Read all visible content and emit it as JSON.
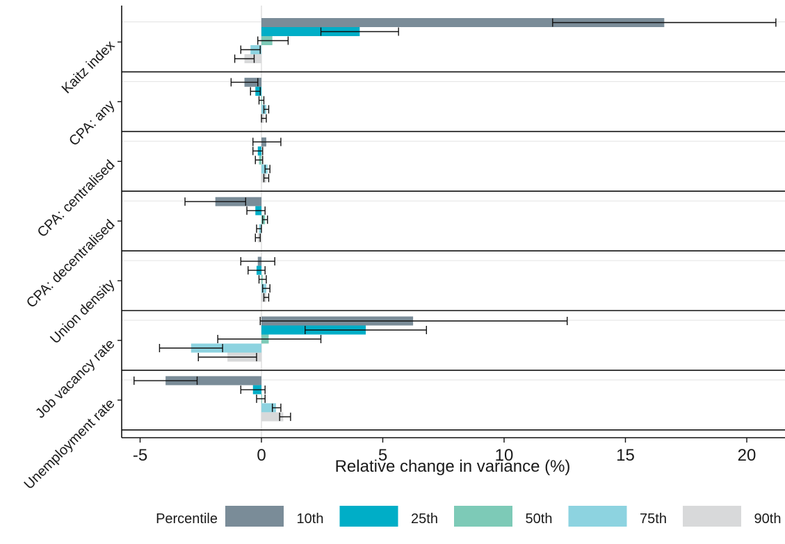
{
  "chart_data": {
    "type": "bar",
    "orientation": "horizontal",
    "xlabel": "Relative change in variance (%)",
    "xlim": [
      -6,
      21.5
    ],
    "xticks": [
      -5,
      0,
      5,
      10,
      15,
      20
    ],
    "xtick_labels": [
      "-5",
      "0",
      "5",
      "10",
      "15",
      "20"
    ],
    "grid": "horizontal minor lines only",
    "legend": {
      "position": "bottom",
      "title": "Percentile",
      "entries": [
        "10th",
        "25th",
        "50th",
        "75th",
        "90th"
      ]
    },
    "colors": [
      "#7a8c98",
      "#00aec7",
      "#7dcab7",
      "#8dd3e0",
      "#d8d9da"
    ],
    "categories": [
      "Kaitz index",
      "CPA: any",
      "CPA: centralised",
      "CPA: decentralised",
      "Union density",
      "Job vacancy rate",
      "Unemployment rate"
    ],
    "series": [
      {
        "name": "10th",
        "values": [
          16.6,
          -0.7,
          0.2,
          -1.9,
          -0.15,
          6.25,
          -3.95
        ],
        "ci_low": [
          12.0,
          -1.25,
          -0.35,
          -3.15,
          -0.85,
          -0.05,
          -5.25
        ],
        "ci_high": [
          21.2,
          -0.15,
          0.8,
          -0.65,
          0.55,
          12.6,
          -2.65
        ]
      },
      {
        "name": "25th",
        "values": [
          4.05,
          -0.25,
          -0.15,
          -0.25,
          -0.2,
          4.3,
          -0.35
        ],
        "ci_low": [
          2.45,
          -0.45,
          -0.35,
          -0.6,
          -0.55,
          1.8,
          -0.85
        ],
        "ci_high": [
          5.65,
          -0.05,
          0.05,
          0.15,
          0.15,
          6.8,
          0.15
        ]
      },
      {
        "name": "50th",
        "values": [
          0.45,
          0.0,
          -0.1,
          0.15,
          0.05,
          0.3,
          0.0
        ],
        "ci_low": [
          -0.15,
          -0.1,
          -0.25,
          0.05,
          -0.1,
          -1.8,
          -0.2
        ],
        "ci_high": [
          1.1,
          0.1,
          0.05,
          0.25,
          0.2,
          2.45,
          0.15
        ]
      },
      {
        "name": "75th",
        "values": [
          -0.45,
          0.2,
          0.25,
          -0.1,
          0.2,
          -2.9,
          0.6
        ],
        "ci_low": [
          -0.85,
          0.1,
          0.15,
          -0.2,
          0.05,
          -4.2,
          0.45
        ],
        "ci_high": [
          -0.05,
          0.3,
          0.35,
          0.0,
          0.35,
          -1.6,
          0.8
        ]
      },
      {
        "name": "90th",
        "values": [
          -0.7,
          0.1,
          0.2,
          -0.15,
          0.2,
          -1.4,
          0.9
        ],
        "ci_low": [
          -1.1,
          0.0,
          0.1,
          -0.25,
          0.1,
          -2.6,
          0.75
        ],
        "ci_high": [
          -0.3,
          0.2,
          0.3,
          -0.05,
          0.3,
          -0.2,
          1.2
        ]
      }
    ]
  }
}
